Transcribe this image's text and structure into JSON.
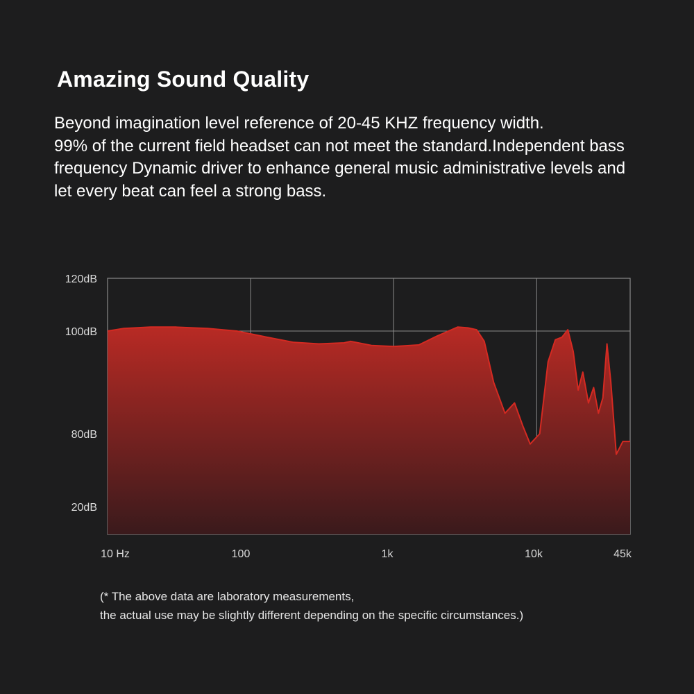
{
  "header": {
    "title": "Amazing Sound Quality",
    "description_lines": [
      "Beyond imagination level reference of 20-45 KHZ frequency width.",
      "99% of the current field headset can not meet the standard.Independent bass",
      "frequency Dynamic driver to enhance general music administrative levels and",
      "let every beat can feel a strong bass."
    ]
  },
  "footnote": {
    "lines": [
      "(* The above data are laboratory measurements,",
      "the actual use may be slightly different depending on the specific circumstances.)"
    ]
  },
  "colors": {
    "background": "#1d1d1e",
    "curve": "#d42a22",
    "fill_top": "#b82a24",
    "fill_bottom": "#3a1a1c",
    "grid": "#8a8a8a"
  },
  "chart_data": {
    "type": "area",
    "title": "",
    "xlabel": "",
    "ylabel": "",
    "x_scale": "log",
    "xlim": [
      10,
      45000
    ],
    "x_ticks": [
      {
        "value": 10,
        "label": "10 Hz"
      },
      {
        "value": 100,
        "label": "100"
      },
      {
        "value": 1000,
        "label": "1k"
      },
      {
        "value": 10000,
        "label": "10k"
      },
      {
        "value": 45000,
        "label": "45k"
      }
    ],
    "y_ticks": [
      "120dB",
      "100dB",
      "80dB",
      "20dB"
    ],
    "grid": true,
    "series": [
      {
        "x": [
          10,
          13,
          20,
          30,
          50,
          80,
          120,
          200,
          300,
          450,
          500,
          700,
          1000,
          1500,
          2000,
          2800,
          3300,
          3800,
          4300,
          5000,
          6000,
          7000,
          8000,
          9000,
          10500,
          12000,
          13500,
          15000,
          16500,
          18000,
          19500,
          21000,
          23000,
          25000,
          27000,
          29000,
          31000,
          33000,
          36000,
          40000,
          45000
        ],
        "y": [
          100,
          101,
          101.5,
          101.5,
          101,
          100,
          99,
          97.8,
          97.5,
          97.7,
          98,
          97.2,
          97,
          97.3,
          99,
          101.5,
          101.2,
          100.5,
          98,
          90,
          84,
          86,
          81.5,
          78,
          80,
          94,
          98.3,
          98.8,
          100.5,
          96,
          88.5,
          92,
          86,
          89,
          84,
          87,
          97.5,
          90,
          76,
          78.5,
          78.5
        ]
      }
    ]
  }
}
